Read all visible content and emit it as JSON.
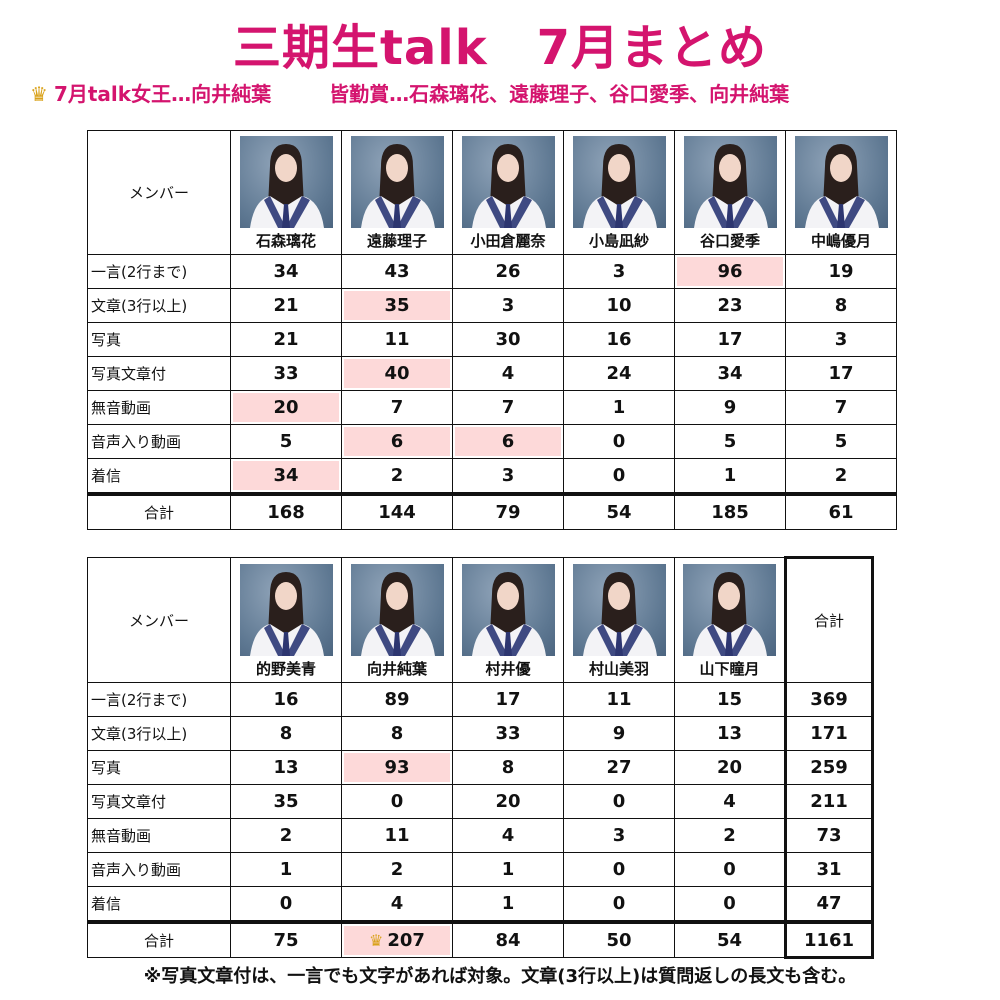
{
  "title": "三期生talk　7月まとめ",
  "subtitle": {
    "crown_icon": "crown-icon",
    "queen": "7月talk女王…向井純葉",
    "attendance": "皆勤賞…石森璃花、遠藤理子、谷口愛季、向井純葉"
  },
  "colors": {
    "accent": "#d4146e",
    "highlight": "#fdd9d9",
    "crown": "#d9a21b"
  },
  "row_labels": [
    "一言(2行まで)",
    "文章(3行以上)",
    "写真",
    "写真文章付",
    "無音動画",
    "音声入り動画",
    "着信"
  ],
  "member_label": "メンバー",
  "total_label": "合計",
  "table1": {
    "members": [
      {
        "name": "石森璃花",
        "values": [
          "34",
          "21",
          "21",
          "33",
          "20",
          "5",
          "34"
        ],
        "total": "168",
        "highlight": [
          4,
          6
        ]
      },
      {
        "name": "遠藤理子",
        "values": [
          "43",
          "35",
          "11",
          "40",
          "7",
          "6",
          "2"
        ],
        "total": "144",
        "highlight": [
          1,
          3,
          5
        ]
      },
      {
        "name": "小田倉麗奈",
        "values": [
          "26",
          "3",
          "30",
          "4",
          "7",
          "6",
          "3"
        ],
        "total": "79",
        "highlight": [
          5
        ]
      },
      {
        "name": "小島凪紗",
        "values": [
          "3",
          "10",
          "16",
          "24",
          "1",
          "0",
          "0"
        ],
        "total": "54",
        "highlight": []
      },
      {
        "name": "谷口愛季",
        "values": [
          "96",
          "23",
          "17",
          "34",
          "9",
          "5",
          "1"
        ],
        "total": "185",
        "highlight": [
          0
        ]
      },
      {
        "name": "中嶋優月",
        "values": [
          "19",
          "8",
          "3",
          "17",
          "7",
          "5",
          "2"
        ],
        "total": "61",
        "highlight": []
      }
    ]
  },
  "table2": {
    "members": [
      {
        "name": "的野美青",
        "values": [
          "16",
          "8",
          "13",
          "35",
          "2",
          "1",
          "0"
        ],
        "total": "75",
        "highlight": []
      },
      {
        "name": "向井純葉",
        "values": [
          "89",
          "8",
          "93",
          "0",
          "11",
          "2",
          "4"
        ],
        "total": "207",
        "highlight": [
          2
        ],
        "total_highlight": true,
        "crown": true
      },
      {
        "name": "村井優",
        "values": [
          "17",
          "33",
          "8",
          "20",
          "4",
          "1",
          "1"
        ],
        "total": "84",
        "highlight": []
      },
      {
        "name": "村山美羽",
        "values": [
          "11",
          "9",
          "27",
          "0",
          "3",
          "0",
          "0"
        ],
        "total": "50",
        "highlight": []
      },
      {
        "name": "山下瞳月",
        "values": [
          "15",
          "13",
          "20",
          "4",
          "2",
          "0",
          "0"
        ],
        "total": "54",
        "highlight": []
      }
    ],
    "grand_totals": [
      "369",
      "171",
      "259",
      "211",
      "73",
      "31",
      "47"
    ],
    "grand_total": "1161"
  },
  "footer": "※写真文章付は、一言でも文字があれば対象。文章(3行以上)は質問返しの長文も含む。"
}
